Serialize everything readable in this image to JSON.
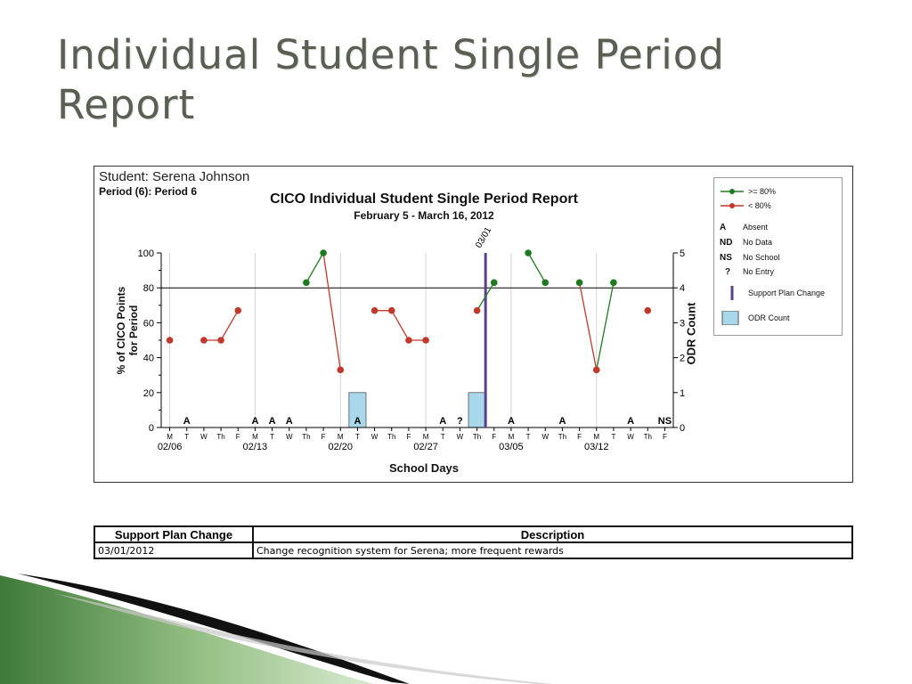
{
  "slide": {
    "title": "Individual Student Single Period Report"
  },
  "chart_header": {
    "student": "Student: Serena Johnson",
    "period": "Period (6): Period 6",
    "title": "CICO Individual Student Single Period Report",
    "subtitle": "February 5 - March 16, 2012",
    "ylabel_left_line1": "% of CICO Points",
    "ylabel_left_line2": "for Period",
    "ylabel_right": "ODR Count",
    "xlabel": "School Days"
  },
  "legend": {
    "above": ">= 80%",
    "below": "< 80%",
    "absent_sym": "A",
    "absent": "Absent",
    "nodata_sym": "ND",
    "nodata": "No Data",
    "noschool_sym": "NS",
    "noschool": "No School",
    "noentry_sym": "?",
    "noentry": "No Entry",
    "support": "Support Plan Change",
    "odr": "ODR Count"
  },
  "chart_data": {
    "type": "line",
    "days": [
      "M",
      "T",
      "W",
      "Th",
      "F",
      "M",
      "T",
      "W",
      "Th",
      "F",
      "M",
      "T",
      "W",
      "Th",
      "F",
      "M",
      "T",
      "W",
      "Th",
      "F",
      "M",
      "T",
      "W",
      "Th",
      "F",
      "M",
      "T",
      "W",
      "Th",
      "F"
    ],
    "week_labels": [
      {
        "index": 0,
        "label": "02/06"
      },
      {
        "index": 5,
        "label": "02/13"
      },
      {
        "index": 10,
        "label": "02/20"
      },
      {
        "index": 15,
        "label": "02/27"
      },
      {
        "index": 20,
        "label": "03/05"
      },
      {
        "index": 25,
        "label": "03/12"
      }
    ],
    "values": [
      50,
      null,
      50,
      50,
      67,
      null,
      null,
      null,
      83,
      100,
      33,
      null,
      67,
      67,
      50,
      50,
      null,
      null,
      67,
      83,
      null,
      100,
      83,
      null,
      83,
      33,
      83,
      null,
      67,
      null
    ],
    "day_markers": [
      {
        "index": 1,
        "label": "A"
      },
      {
        "index": 5,
        "label": "A"
      },
      {
        "index": 6,
        "label": "A"
      },
      {
        "index": 7,
        "label": "A"
      },
      {
        "index": 11,
        "label": "A"
      },
      {
        "index": 16,
        "label": "A"
      },
      {
        "index": 17,
        "label": "?"
      },
      {
        "index": 20,
        "label": "A"
      },
      {
        "index": 23,
        "label": "A"
      },
      {
        "index": 27,
        "label": "A"
      },
      {
        "index": 29,
        "label": "NS"
      }
    ],
    "odr_counts": [
      {
        "index": 11,
        "value": 1
      },
      {
        "index": 18,
        "value": 1
      }
    ],
    "support_plan_change": {
      "index": 18.5,
      "label": "03/01"
    },
    "goal_line": 80,
    "ylim": [
      0,
      100
    ],
    "y_ticks": [
      0,
      20,
      40,
      60,
      80,
      100
    ],
    "y2lim": [
      0,
      5
    ],
    "y2_ticks": [
      0,
      1,
      2,
      3,
      4,
      5
    ],
    "colors": {
      "above": "#1e7a1e",
      "below": "#c0392b",
      "odr": "#a8d8ea",
      "support": "#5b3f8f"
    }
  },
  "support_table": {
    "headers": [
      "Support Plan Change",
      "Description"
    ],
    "row": {
      "date": "03/01/2012",
      "description": "Change recognition system for Serena; more frequent rewards"
    }
  }
}
